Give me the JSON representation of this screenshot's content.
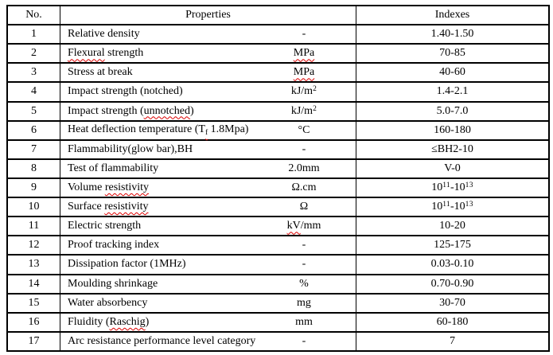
{
  "table": {
    "border_color": "#000000",
    "squiggle_color": "#dd0000",
    "header": {
      "no": "No.",
      "properties": "Properties",
      "indexes": "Indexes"
    },
    "rows": [
      {
        "no": "1",
        "property": [
          {
            "t": "Relative density"
          }
        ],
        "unit": [
          {
            "t": "-"
          }
        ],
        "index": [
          {
            "t": "1.40-1.50"
          }
        ]
      },
      {
        "no": "2",
        "property": [
          {
            "t": "Flexural",
            "sq": true
          },
          {
            "t": " strength"
          }
        ],
        "unit": [
          {
            "t": "MPa",
            "sq": true
          }
        ],
        "index": [
          {
            "t": "70-85"
          }
        ]
      },
      {
        "no": "3",
        "property": [
          {
            "t": "Stress at break"
          }
        ],
        "unit": [
          {
            "t": "MPa",
            "sq": true
          }
        ],
        "index": [
          {
            "t": "40-60"
          }
        ]
      },
      {
        "no": "4",
        "property": [
          {
            "t": "Impact strength (notched)"
          }
        ],
        "unit": [
          {
            "t": "kJ/m"
          },
          {
            "t": "2",
            "sup": true
          }
        ],
        "index": [
          {
            "t": "1.4-2.1"
          }
        ]
      },
      {
        "no": "5",
        "property": [
          {
            "t": "Impact strength ("
          },
          {
            "t": "unnotched",
            "sq": true
          },
          {
            "t": ")"
          }
        ],
        "unit": [
          {
            "t": "kJ/m"
          },
          {
            "t": "2",
            "sup": true
          }
        ],
        "index": [
          {
            "t": "5.0-7.0"
          }
        ]
      },
      {
        "no": "6",
        "property": [
          {
            "t": "Heat deflection temperature (T"
          },
          {
            "t": "f",
            "sub": true,
            "sq": true
          },
          {
            "t": " 1.8Mpa)"
          }
        ],
        "unit": [
          {
            "t": "°C"
          }
        ],
        "index": [
          {
            "t": "160-180"
          }
        ]
      },
      {
        "no": "7",
        "property": [
          {
            "t": "Flammability(glow bar),BH"
          }
        ],
        "unit": [
          {
            "t": "-"
          }
        ],
        "index": [
          {
            "t": "≤BH2-10"
          }
        ]
      },
      {
        "no": "8",
        "property": [
          {
            "t": "Test of flammability"
          }
        ],
        "unit": [
          {
            "t": "2.0mm"
          }
        ],
        "index": [
          {
            "t": "V-0"
          }
        ]
      },
      {
        "no": "9",
        "property": [
          {
            "t": "Volume "
          },
          {
            "t": "resistivity",
            "sq": true
          }
        ],
        "unit": [
          {
            "t": "Ω.cm"
          }
        ],
        "index": [
          {
            "t": "10"
          },
          {
            "t": "11",
            "sup": true
          },
          {
            "t": "-10"
          },
          {
            "t": "13",
            "sup": true
          }
        ]
      },
      {
        "no": "10",
        "property": [
          {
            "t": "Surface "
          },
          {
            "t": "resistivity",
            "sq": true
          }
        ],
        "unit": [
          {
            "t": "Ω"
          }
        ],
        "index": [
          {
            "t": "10"
          },
          {
            "t": "11",
            "sup": true
          },
          {
            "t": "-10"
          },
          {
            "t": "13",
            "sup": true
          }
        ]
      },
      {
        "no": "11",
        "property": [
          {
            "t": "Electric strength"
          }
        ],
        "unit": [
          {
            "t": "kV",
            "sq": true
          },
          {
            "t": "/mm"
          }
        ],
        "index": [
          {
            "t": "10-20"
          }
        ]
      },
      {
        "no": "12",
        "property": [
          {
            "t": "Proof tracking index"
          }
        ],
        "unit": [
          {
            "t": "-"
          }
        ],
        "index": [
          {
            "t": "125-175"
          }
        ]
      },
      {
        "no": "13",
        "property": [
          {
            "t": "Dissipation factor (1MHz)"
          }
        ],
        "unit": [
          {
            "t": "-"
          }
        ],
        "index": [
          {
            "t": "0.03-0.10"
          }
        ]
      },
      {
        "no": "14",
        "property": [
          {
            "t": "Moulding shrinkage"
          }
        ],
        "unit": [
          {
            "t": "%"
          }
        ],
        "index": [
          {
            "t": "0.70-0.90"
          }
        ]
      },
      {
        "no": "15",
        "property": [
          {
            "t": "Water absorbency"
          }
        ],
        "unit": [
          {
            "t": "mg"
          }
        ],
        "index": [
          {
            "t": "30-70"
          }
        ]
      },
      {
        "no": "16",
        "property": [
          {
            "t": "Fluidity ("
          },
          {
            "t": "Raschig",
            "sq": true
          },
          {
            "t": ")"
          }
        ],
        "unit": [
          {
            "t": "mm"
          }
        ],
        "index": [
          {
            "t": "60-180"
          }
        ]
      },
      {
        "no": "17",
        "property": [
          {
            "t": "Arc resistance performance level category"
          }
        ],
        "unit": [
          {
            "t": "-"
          }
        ],
        "index": [
          {
            "t": "7"
          }
        ]
      }
    ]
  }
}
